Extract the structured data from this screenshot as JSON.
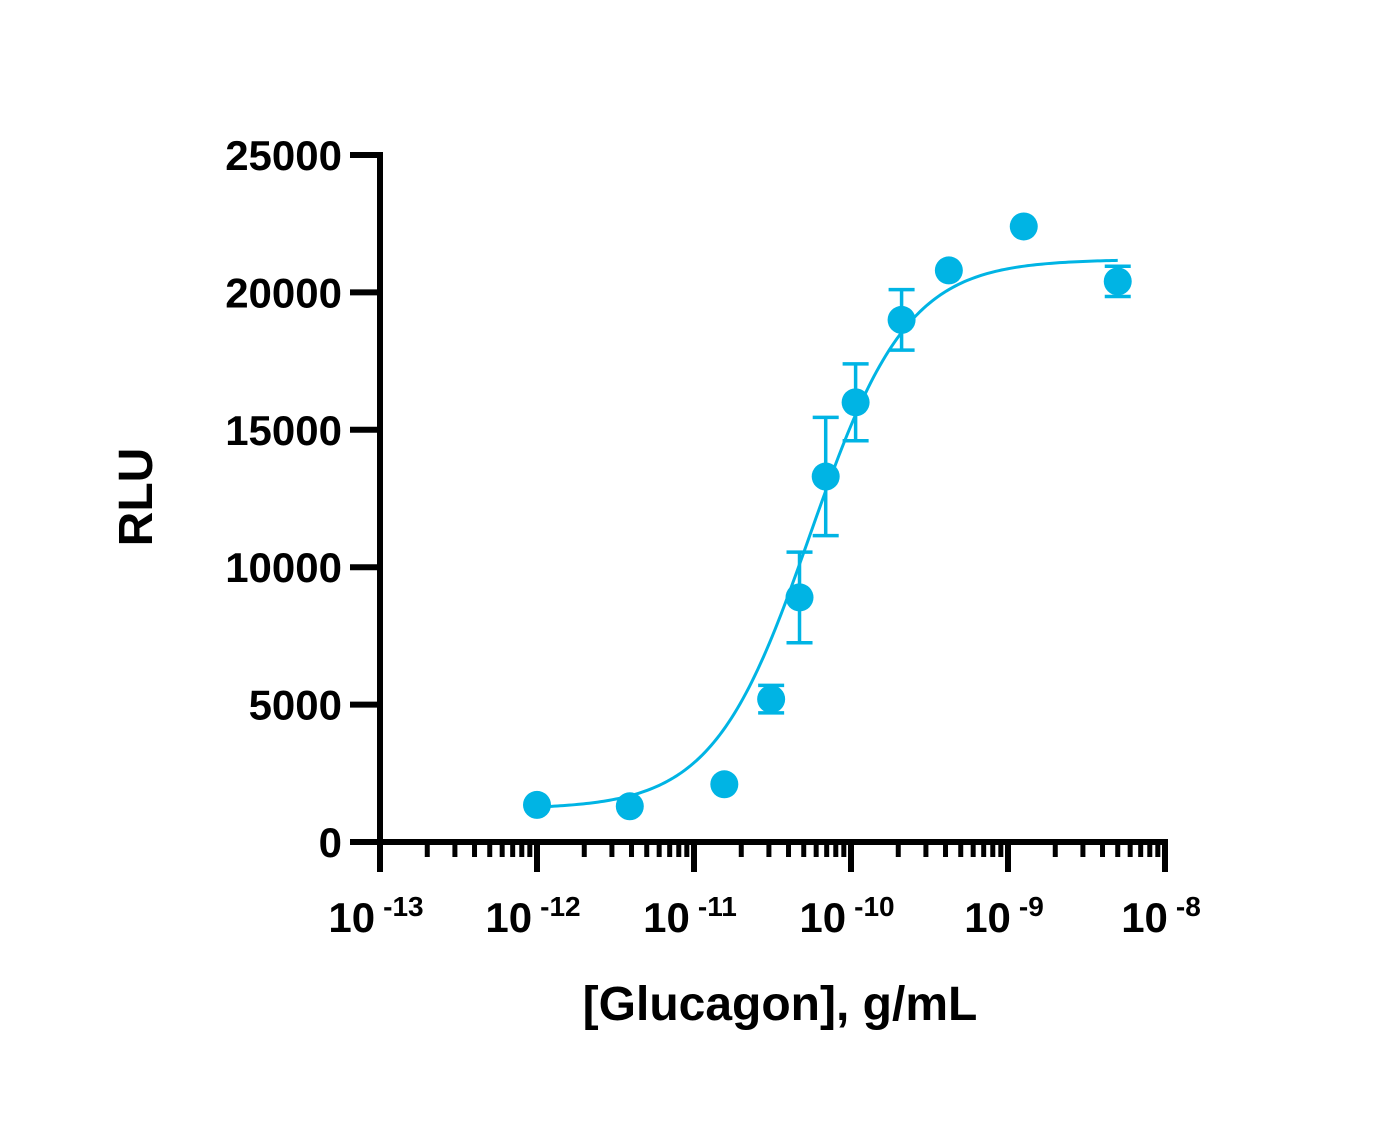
{
  "chart_data": {
    "type": "scatter",
    "xlabel": "[Glucagon], g/mL",
    "ylabel": "RLU",
    "x_scale": "log",
    "xlim": [
      1e-13,
      1e-08
    ],
    "ylim": [
      0,
      25000
    ],
    "grid": false,
    "color": "#00b4e4",
    "y_ticks": [
      {
        "value": 0,
        "label": "0"
      },
      {
        "value": 5000,
        "label": "5000"
      },
      {
        "value": 10000,
        "label": "10000"
      },
      {
        "value": 15000,
        "label": "15000"
      },
      {
        "value": 20000,
        "label": "20000"
      },
      {
        "value": 25000,
        "label": "25000"
      }
    ],
    "x_ticks": [
      {
        "value": 1e-13,
        "base": "10",
        "exp": "-13"
      },
      {
        "value": 1e-12,
        "base": "10",
        "exp": "-12"
      },
      {
        "value": 1e-11,
        "base": "10",
        "exp": "-11"
      },
      {
        "value": 1e-10,
        "base": "10",
        "exp": "-10"
      },
      {
        "value": 1e-09,
        "base": "10",
        "exp": "-9"
      },
      {
        "value": 1e-08,
        "base": "10",
        "exp": "-8"
      }
    ],
    "points": [
      {
        "x": 1e-12,
        "y": 1350,
        "err": 0
      },
      {
        "x": 3.9e-12,
        "y": 1300,
        "err": 0
      },
      {
        "x": 1.56e-11,
        "y": 2100,
        "err": 0
      },
      {
        "x": 3.1e-11,
        "y": 5200,
        "err": 500
      },
      {
        "x": 4.7e-11,
        "y": 8900,
        "err": 1650
      },
      {
        "x": 6.9e-11,
        "y": 13300,
        "err": 2150
      },
      {
        "x": 1.07e-10,
        "y": 16000,
        "err": 1400
      },
      {
        "x": 2.1e-10,
        "y": 19000,
        "err": 1100
      },
      {
        "x": 4.2e-10,
        "y": 20800,
        "err": 0
      },
      {
        "x": 1.26e-09,
        "y": 22400,
        "err": 0
      },
      {
        "x": 5e-09,
        "y": 20400,
        "err": 550
      }
    ],
    "fit": {
      "model": "4PL",
      "bottom": 1200,
      "top": 21200,
      "ec50": 5.5e-11,
      "hill": 1.4,
      "x_range": [
        1e-12,
        5e-09
      ]
    }
  }
}
